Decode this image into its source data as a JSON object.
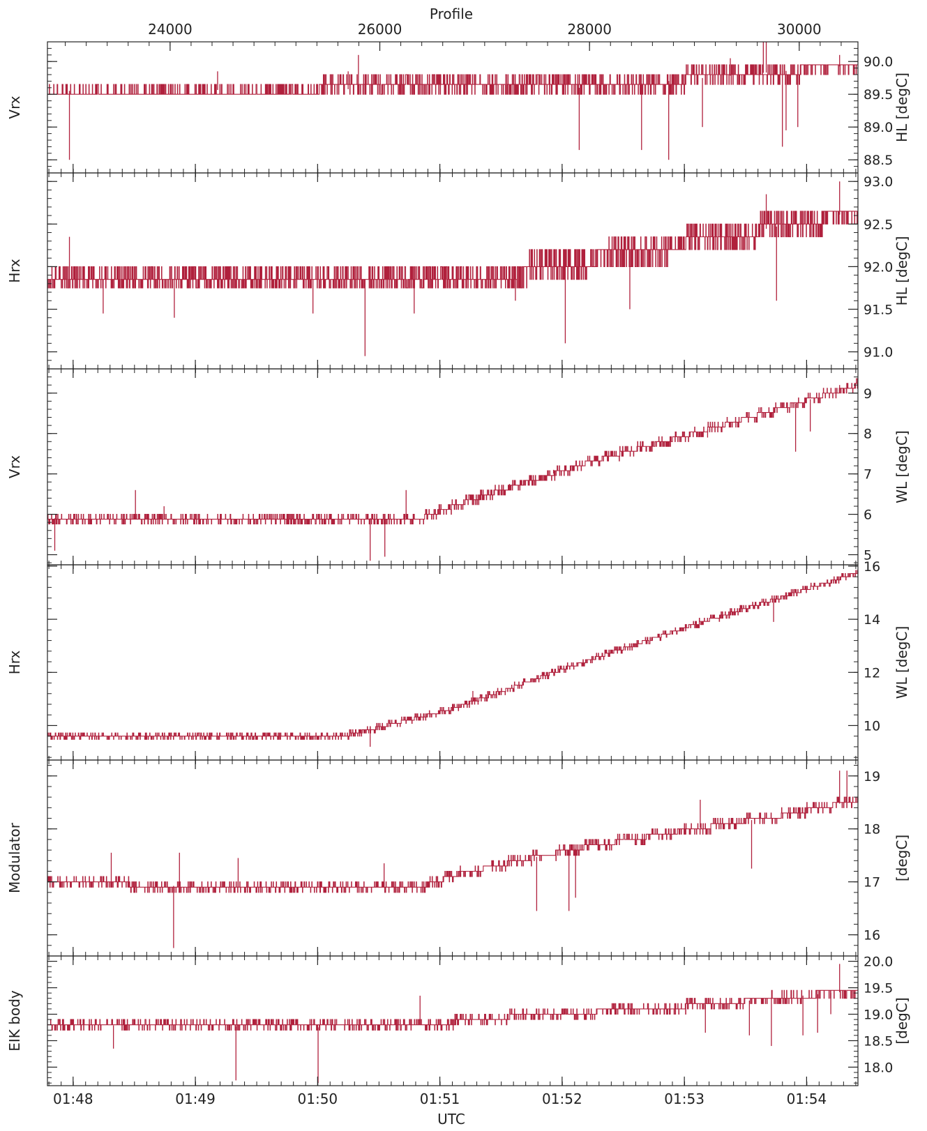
{
  "figure": {
    "top_axis_label": "Profile",
    "bottom_axis_label": "UTC",
    "line_color": "#b0203c"
  },
  "chart_data": [
    {
      "type": "line",
      "left_label": "Vrx",
      "right_label": "HL [degC]",
      "ylim": [
        88.3,
        90.3
      ],
      "yticks": [
        {
          "v": 88.5,
          "label": "88.5"
        },
        {
          "v": 89.0,
          "label": "89.0"
        },
        {
          "v": 89.5,
          "label": "89.5"
        },
        {
          "v": 90.0,
          "label": "90.0"
        }
      ],
      "xlim": [
        1.7965,
        1.907
      ],
      "levels": [
        89.5,
        89.65,
        89.8,
        89.95
      ],
      "step": 0.15,
      "trend": [
        [
          1.7965,
          89.55
        ],
        [
          1.871,
          89.6
        ],
        [
          1.886,
          89.75
        ],
        [
          1.907,
          89.95
        ]
      ],
      "noise": 0.18,
      "spikes": [
        [
          1.7995,
          88.5
        ],
        [
          1.8197,
          89.85
        ],
        [
          1.8375,
          89.85
        ],
        [
          1.8389,
          90.1
        ],
        [
          1.869,
          88.65
        ],
        [
          1.8775,
          88.65
        ],
        [
          1.8812,
          88.5
        ],
        [
          1.8896,
          90.05
        ],
        [
          1.8988,
          89.0
        ],
        [
          1.8967,
          88.7
        ],
        [
          1.8972,
          88.95
        ],
        [
          1.8941,
          90.3
        ],
        [
          1.8945,
          90.3
        ],
        [
          1.8858,
          89.0
        ],
        [
          1.9045,
          90.1
        ]
      ]
    },
    {
      "type": "line",
      "left_label": "Hrx",
      "right_label": "HL [degC]",
      "ylim": [
        90.8,
        93.1
      ],
      "yticks": [
        {
          "v": 91.0,
          "label": "91.0"
        },
        {
          "v": 91.5,
          "label": "91.5"
        },
        {
          "v": 92.0,
          "label": "92.0"
        },
        {
          "v": 92.5,
          "label": "92.5"
        },
        {
          "v": 93.0,
          "label": "93.0"
        }
      ],
      "xlim": [
        1.7965,
        1.907
      ],
      "levels": [
        91.75,
        91.85,
        92.0,
        92.2,
        92.35,
        92.5,
        92.65
      ],
      "step": 0.15,
      "trend": [
        [
          1.7965,
          91.85
        ],
        [
          1.8555,
          91.85
        ],
        [
          1.8655,
          92.0
        ],
        [
          1.8775,
          92.2
        ],
        [
          1.8895,
          92.35
        ],
        [
          1.8975,
          92.5
        ],
        [
          1.907,
          92.65
        ]
      ],
      "noise": 0.22,
      "spikes": [
        [
          1.7995,
          92.35
        ],
        [
          1.8041,
          91.45
        ],
        [
          1.8138,
          91.4
        ],
        [
          1.8327,
          91.45
        ],
        [
          1.8398,
          90.95
        ],
        [
          1.8465,
          91.45
        ],
        [
          1.8603,
          91.6
        ],
        [
          1.8671,
          91.1
        ],
        [
          1.8759,
          91.5
        ],
        [
          1.8945,
          92.85
        ],
        [
          1.8959,
          91.6
        ],
        [
          1.9045,
          93.0
        ],
        [
          1.9005,
          92.6
        ]
      ]
    },
    {
      "type": "line",
      "left_label": "Vrx",
      "right_label": "WL [degC]",
      "ylim": [
        4.75,
        9.6
      ],
      "yticks": [
        {
          "v": 5,
          "label": "5"
        },
        {
          "v": 6,
          "label": "6"
        },
        {
          "v": 7,
          "label": "7"
        },
        {
          "v": 8,
          "label": "8"
        },
        {
          "v": 9,
          "label": "9"
        }
      ],
      "xlim": [
        1.7965,
        1.907
      ],
      "levels": [],
      "step": 0.12,
      "trend": [
        [
          1.7965,
          5.9
        ],
        [
          1.838,
          5.9
        ],
        [
          1.8475,
          5.92
        ],
        [
          1.855,
          6.4
        ],
        [
          1.8705,
          7.3
        ],
        [
          1.8885,
          8.2
        ],
        [
          1.907,
          9.2
        ]
      ],
      "noise": 0.13,
      "spikes": [
        [
          1.7975,
          5.1
        ],
        [
          1.8085,
          6.6
        ],
        [
          1.8124,
          6.2
        ],
        [
          1.8405,
          4.85
        ],
        [
          1.8425,
          4.95
        ],
        [
          1.8454,
          6.6
        ],
        [
          1.8595,
          6.75
        ],
        [
          1.8655,
          7.1
        ],
        [
          1.8735,
          7.45
        ],
        [
          1.8865,
          7.9
        ],
        [
          1.8985,
          7.55
        ],
        [
          1.9005,
          8.05
        ],
        [
          1.9045,
          9.2
        ]
      ]
    },
    {
      "type": "line",
      "left_label": "Hrx",
      "right_label": "WL [degC]",
      "ylim": [
        8.7,
        16.05
      ],
      "yticks": [
        {
          "v": 10,
          "label": "10"
        },
        {
          "v": 12,
          "label": "12"
        },
        {
          "v": 14,
          "label": "14"
        },
        {
          "v": 16,
          "label": "16"
        }
      ],
      "xlim": [
        1.7965,
        1.907
      ],
      "levels": [],
      "step": 0.12,
      "trend": [
        [
          1.7965,
          9.65
        ],
        [
          1.8375,
          9.65
        ],
        [
          1.8515,
          10.6
        ],
        [
          1.8665,
          12.1
        ],
        [
          1.8835,
          13.7
        ],
        [
          1.8985,
          15.0
        ],
        [
          1.907,
          15.75
        ]
      ],
      "noise": 0.14,
      "spikes": [
        [
          1.8405,
          9.2
        ],
        [
          1.8545,
          11.3
        ],
        [
          1.8955,
          13.9
        ]
      ]
    },
    {
      "type": "line",
      "left_label": "Modulator",
      "right_label": "[degC]",
      "ylim": [
        15.6,
        19.3
      ],
      "yticks": [
        {
          "v": 16,
          "label": "16"
        },
        {
          "v": 17,
          "label": "17"
        },
        {
          "v": 18,
          "label": "18"
        },
        {
          "v": 19,
          "label": "19"
        }
      ],
      "xlim": [
        1.7965,
        1.907
      ],
      "levels": [],
      "step": 0.1,
      "trend": [
        [
          1.7965,
          17.0
        ],
        [
          1.819,
          16.9
        ],
        [
          1.8475,
          16.9
        ],
        [
          1.8525,
          17.15
        ],
        [
          1.8675,
          17.6
        ],
        [
          1.8845,
          18.0
        ],
        [
          1.8965,
          18.25
        ],
        [
          1.907,
          18.55
        ]
      ],
      "noise": 0.12,
      "spikes": [
        [
          1.8052,
          17.55
        ],
        [
          1.8145,
          17.55
        ],
        [
          1.8137,
          15.75
        ],
        [
          1.8225,
          17.45
        ],
        [
          1.8424,
          17.35
        ],
        [
          1.8632,
          16.45
        ],
        [
          1.8676,
          16.45
        ],
        [
          1.8685,
          16.7
        ],
        [
          1.8855,
          18.55
        ],
        [
          1.8925,
          17.25
        ],
        [
          1.9045,
          19.1
        ],
        [
          1.9055,
          19.1
        ]
      ]
    },
    {
      "type": "line",
      "left_label": "EIK body",
      "right_label": "[degC]",
      "ylim": [
        17.65,
        20.1
      ],
      "yticks": [
        {
          "v": 18.0,
          "label": "18.0"
        },
        {
          "v": 18.5,
          "label": "18.5"
        },
        {
          "v": 19.0,
          "label": "19.0"
        },
        {
          "v": 19.5,
          "label": "19.5"
        },
        {
          "v": 20.0,
          "label": "20.0"
        }
      ],
      "xlim": [
        1.7965,
        1.907
      ],
      "levels": [
        18.7,
        18.8,
        18.9,
        19.0,
        19.1,
        19.2,
        19.3,
        19.45
      ],
      "step": 0.1,
      "trend": [
        [
          1.7965,
          18.8
        ],
        [
          1.8345,
          18.75
        ],
        [
          1.848,
          18.8
        ],
        [
          1.8595,
          18.95
        ],
        [
          1.8835,
          19.15
        ],
        [
          1.8955,
          19.3
        ],
        [
          1.907,
          19.45
        ]
      ],
      "noise": 0.12,
      "spikes": [
        [
          1.8055,
          18.35
        ],
        [
          1.8222,
          17.75
        ],
        [
          1.8334,
          17.7
        ],
        [
          1.8473,
          19.35
        ],
        [
          1.8862,
          18.65
        ],
        [
          1.8922,
          18.6
        ],
        [
          1.8952,
          18.4
        ],
        [
          1.8995,
          18.6
        ],
        [
          1.9015,
          18.65
        ],
        [
          1.9045,
          19.95
        ],
        [
          1.9033,
          19.0
        ]
      ]
    }
  ],
  "x_axis": {
    "utc_ticks": [
      {
        "v": 1.8,
        "label": "01:48"
      },
      {
        "v": 1.8166667,
        "label": "01:49"
      },
      {
        "v": 1.8333333,
        "label": "01:50"
      },
      {
        "v": 1.85,
        "label": "01:51"
      },
      {
        "v": 1.8666667,
        "label": "01:52"
      },
      {
        "v": 1.8833333,
        "label": "01:53"
      },
      {
        "v": 1.9,
        "label": "01:54"
      }
    ],
    "utc_minor_step": 0.0016667,
    "profile_ticks": [
      {
        "v": 24000,
        "label": "24000"
      },
      {
        "v": 26000,
        "label": "26000"
      },
      {
        "v": 28000,
        "label": "28000"
      },
      {
        "v": 30000,
        "label": "30000"
      }
    ],
    "profile_minor_step": 200,
    "profile_range": [
      22830,
      30560
    ]
  }
}
